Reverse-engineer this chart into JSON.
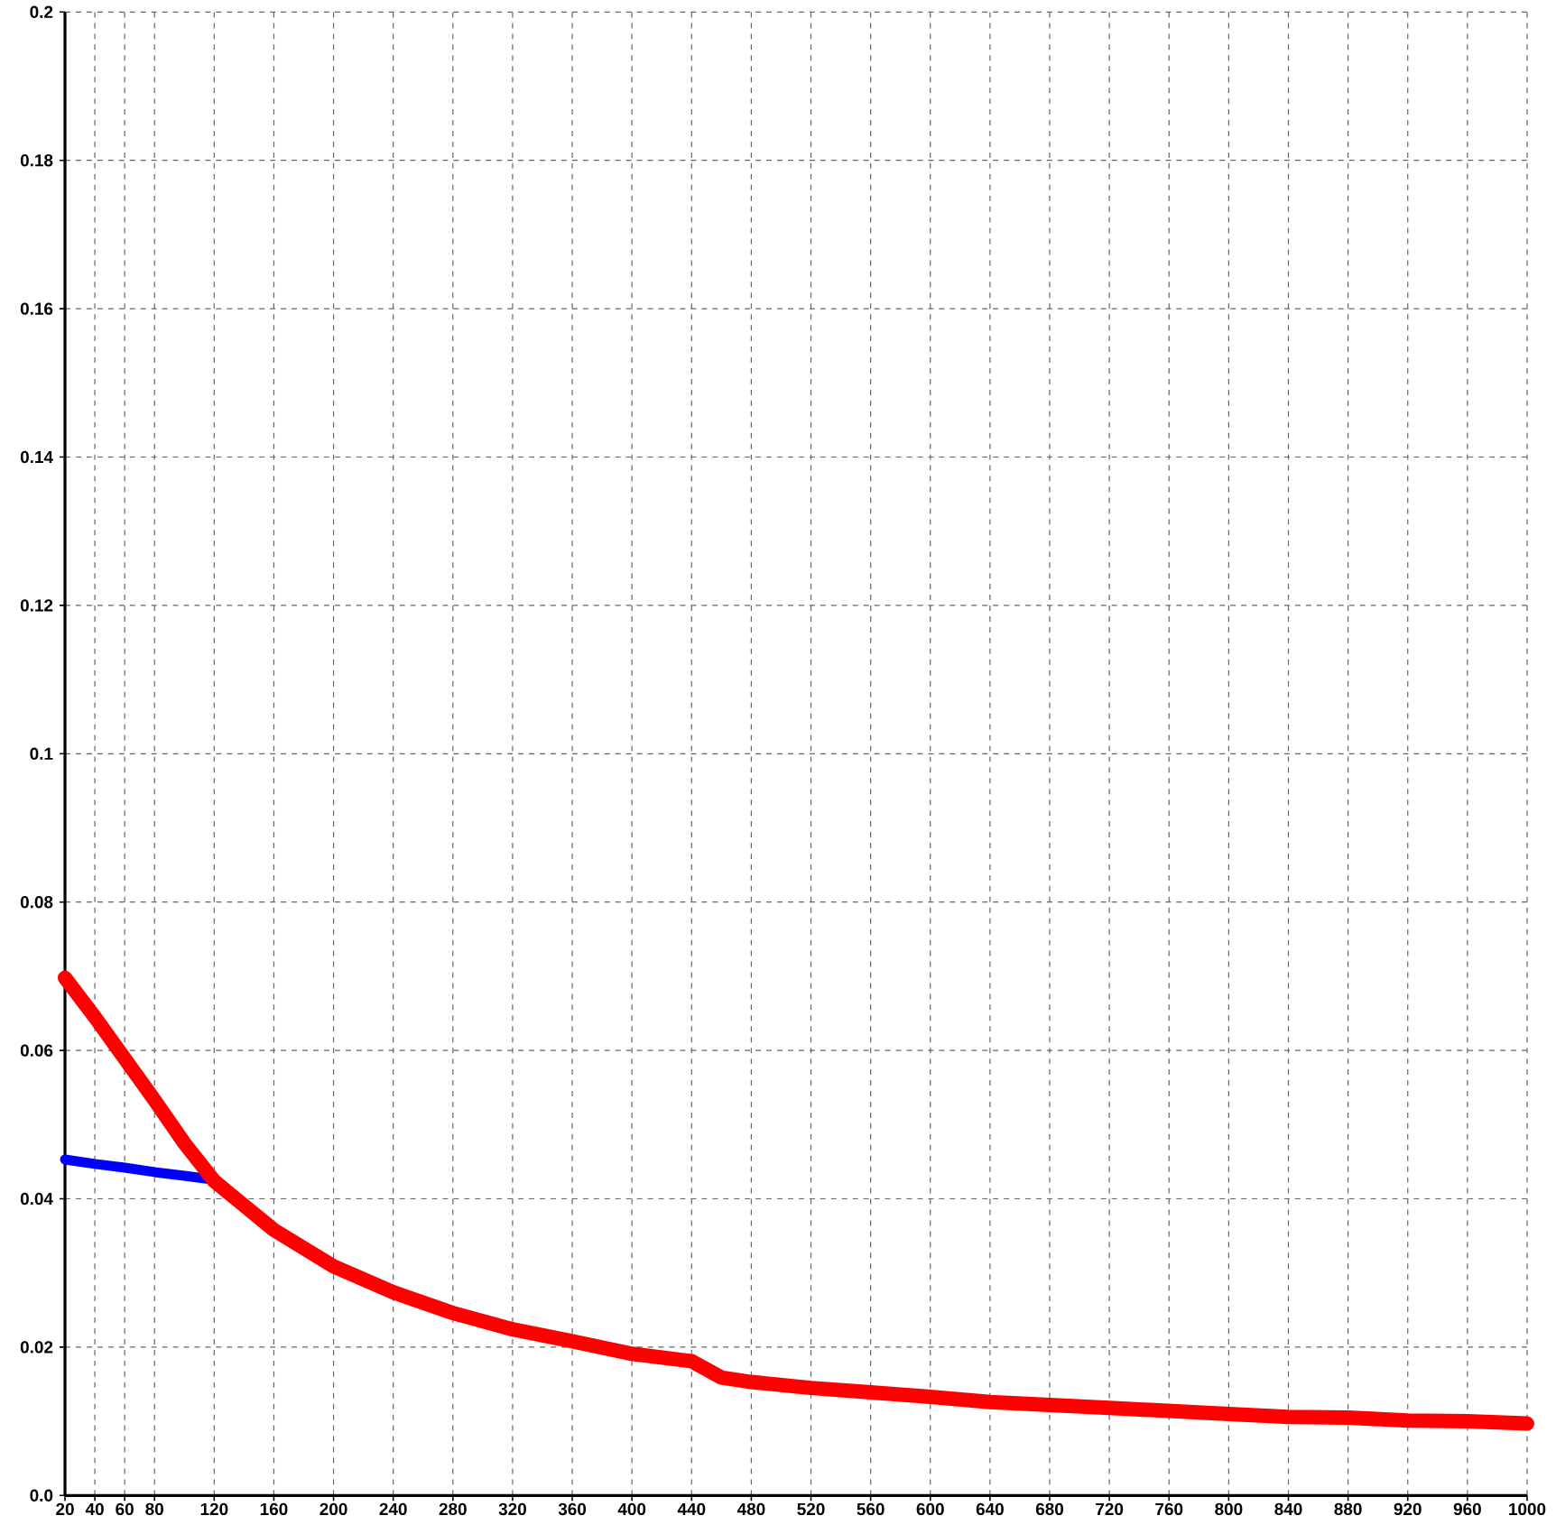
{
  "chart_data": {
    "type": "line",
    "xlim": [
      20,
      1000
    ],
    "ylim": [
      0,
      0.2
    ],
    "xticks": [
      20,
      40,
      60,
      80,
      120,
      160,
      200,
      240,
      280,
      320,
      360,
      400,
      440,
      480,
      520,
      560,
      600,
      640,
      680,
      720,
      760,
      800,
      840,
      880,
      920,
      960,
      1000
    ],
    "yticks": [
      {
        "value": 0,
        "label": "0.0"
      },
      0.02,
      0.04,
      0.06,
      0.08,
      0.1,
      0.12,
      0.14,
      0.16,
      0.18,
      0.2
    ],
    "grid": true,
    "marker": "none",
    "line_style": "solid",
    "series": [
      {
        "color": "#0000ff",
        "x": [
          20,
          40,
          60,
          80,
          100,
          115
        ],
        "values": [
          0.0453,
          0.0447,
          0.0442,
          0.0436,
          0.0431,
          0.0427
        ]
      },
      {
        "color": "#ff0000",
        "x": [
          20,
          40,
          60,
          80,
          100,
          120,
          160,
          200,
          240,
          280,
          320,
          360,
          400,
          440,
          460,
          480,
          520,
          560,
          600,
          640,
          680,
          720,
          760,
          800,
          840,
          880,
          920,
          960,
          1000
        ],
        "values": [
          0.0698,
          0.0645,
          0.0589,
          0.0533,
          0.0475,
          0.0424,
          0.0358,
          0.0309,
          0.0274,
          0.0246,
          0.0224,
          0.0208,
          0.0191,
          0.0181,
          0.0159,
          0.0153,
          0.0145,
          0.0139,
          0.0133,
          0.0126,
          0.0122,
          0.0118,
          0.0114,
          0.011,
          0.0106,
          0.0105,
          0.0101,
          0.01,
          0.0097
        ]
      }
    ]
  }
}
